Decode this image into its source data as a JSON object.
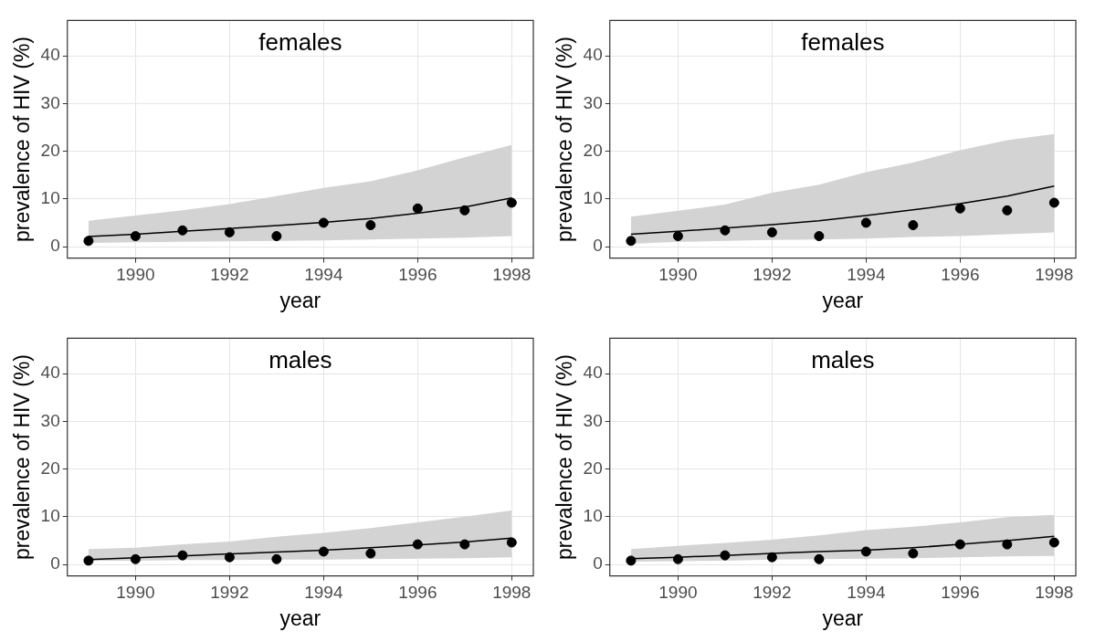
{
  "chart_data": [
    {
      "type": "line",
      "title": "females",
      "xlabel": "year",
      "ylabel": "prevalence of HIV (%)",
      "xlim": [
        1988.55,
        1998.46
      ],
      "ylim": [
        -2.4,
        47.4
      ],
      "xticks": [
        1990,
        1992,
        1994,
        1996,
        1998
      ],
      "yticks": [
        0,
        10,
        20,
        30,
        40
      ],
      "grid": true,
      "x": [
        1989,
        1990,
        1991,
        1992,
        1993,
        1994,
        1995,
        1996,
        1997,
        1998
      ],
      "series": [
        {
          "color": "#000000",
          "marker": "none",
          "values": [
            2.1,
            2.6,
            3.2,
            3.8,
            4.4,
            5.1,
            5.9,
            7.0,
            8.3,
            10.2
          ],
          "lower": [
            0.8,
            0.9,
            1.0,
            1.1,
            1.2,
            1.3,
            1.5,
            1.7,
            1.9,
            2.2
          ],
          "upper": [
            5.4,
            6.5,
            7.6,
            8.9,
            10.6,
            12.3,
            13.7,
            16.0,
            18.7,
            21.3
          ]
        },
        {
          "type": "scatter",
          "color": "#000000",
          "marker": "circle",
          "values": [
            1.2,
            2.2,
            3.4,
            3.0,
            2.2,
            5.0,
            4.5,
            8.0,
            7.6,
            9.2
          ]
        }
      ]
    },
    {
      "type": "line",
      "title": "females",
      "xlabel": "year",
      "ylabel": "prevalence of HIV (%)",
      "xlim": [
        1988.55,
        1998.46
      ],
      "ylim": [
        -2.4,
        47.4
      ],
      "xticks": [
        1990,
        1992,
        1994,
        1996,
        1998
      ],
      "yticks": [
        0,
        10,
        20,
        30,
        40
      ],
      "grid": true,
      "x": [
        1989,
        1990,
        1991,
        1992,
        1993,
        1994,
        1995,
        1996,
        1997,
        1998
      ],
      "series": [
        {
          "color": "#000000",
          "marker": "none",
          "values": [
            2.6,
            3.2,
            3.9,
            4.6,
            5.4,
            6.5,
            7.7,
            9.0,
            10.6,
            12.7
          ],
          "lower": [
            0.6,
            1.0,
            1.2,
            1.4,
            1.5,
            1.7,
            2.0,
            2.2,
            2.6,
            3.0
          ],
          "upper": [
            6.3,
            7.5,
            8.8,
            11.3,
            13.0,
            15.6,
            17.6,
            20.2,
            22.3,
            23.6
          ]
        },
        {
          "type": "scatter",
          "color": "#000000",
          "marker": "circle",
          "values": [
            1.2,
            2.2,
            3.4,
            3.0,
            2.2,
            5.0,
            4.5,
            8.0,
            7.6,
            9.2
          ]
        }
      ]
    },
    {
      "type": "line",
      "title": "males",
      "xlabel": "year",
      "ylabel": "prevalence of HIV (%)",
      "xlim": [
        1988.55,
        1998.46
      ],
      "ylim": [
        -2.4,
        47.4
      ],
      "xticks": [
        1990,
        1992,
        1994,
        1996,
        1998
      ],
      "yticks": [
        0,
        10,
        20,
        30,
        40
      ],
      "grid": true,
      "x": [
        1989,
        1990,
        1991,
        1992,
        1993,
        1994,
        1995,
        1996,
        1997,
        1998
      ],
      "series": [
        {
          "color": "#000000",
          "marker": "none",
          "values": [
            1.0,
            1.4,
            1.8,
            2.2,
            2.6,
            3.0,
            3.5,
            4.1,
            4.7,
            5.5
          ],
          "lower": [
            0.8,
            0.8,
            0.9,
            0.9,
            1.0,
            1.0,
            1.1,
            1.2,
            1.3,
            1.5
          ],
          "upper": [
            3.2,
            3.5,
            4.2,
            4.8,
            5.8,
            6.6,
            7.6,
            8.8,
            10.0,
            11.3
          ]
        },
        {
          "type": "scatter",
          "color": "#000000",
          "marker": "circle",
          "values": [
            0.8,
            1.1,
            1.9,
            1.5,
            1.1,
            2.7,
            2.3,
            4.2,
            4.2,
            4.6
          ]
        }
      ]
    },
    {
      "type": "line",
      "title": "males",
      "xlabel": "year",
      "ylabel": "prevalence of HIV (%)",
      "xlim": [
        1988.55,
        1998.46
      ],
      "ylim": [
        -2.4,
        47.4
      ],
      "xticks": [
        1990,
        1992,
        1994,
        1996,
        1998
      ],
      "yticks": [
        0,
        10,
        20,
        30,
        40
      ],
      "grid": true,
      "x": [
        1989,
        1990,
        1991,
        1992,
        1993,
        1994,
        1995,
        1996,
        1997,
        1998
      ],
      "series": [
        {
          "color": "#000000",
          "marker": "none",
          "values": [
            1.2,
            1.5,
            1.9,
            2.3,
            2.7,
            3.0,
            3.5,
            4.2,
            5.0,
            5.9
          ],
          "lower": [
            0.6,
            0.7,
            0.8,
            1.0,
            1.1,
            1.2,
            1.3,
            1.5,
            1.7,
            1.8
          ],
          "upper": [
            3.2,
            3.9,
            4.5,
            5.2,
            6.1,
            7.2,
            7.9,
            8.8,
            9.9,
            10.4
          ]
        },
        {
          "type": "scatter",
          "color": "#000000",
          "marker": "circle",
          "values": [
            0.8,
            1.1,
            1.9,
            1.5,
            1.1,
            2.7,
            2.3,
            4.2,
            4.2,
            4.6
          ]
        }
      ]
    }
  ]
}
